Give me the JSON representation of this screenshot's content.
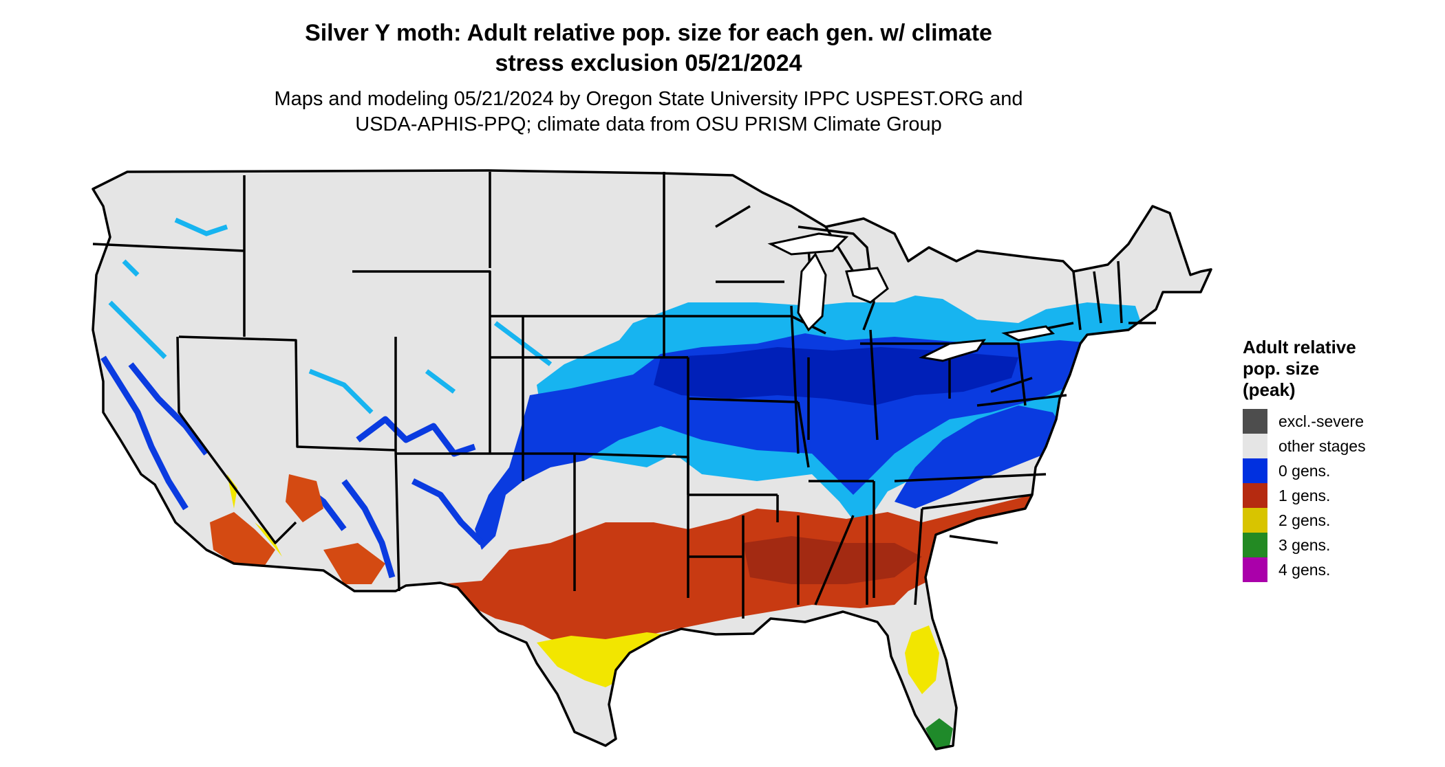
{
  "title_lines": [
    "Silver Y moth: Adult relative pop. size for each gen. w/ climate",
    "stress exclusion 05/21/2024"
  ],
  "subtitle_lines": [
    "Maps and modeling 05/21/2024 by Oregon State University IPPC USPEST.ORG and",
    "USDA-APHIS-PPQ; climate data from OSU PRISM Climate Group"
  ],
  "legend": {
    "title_lines": [
      "Adult relative",
      "pop. size",
      "(peak)"
    ],
    "items": [
      {
        "label": "excl.-severe",
        "color": "#4d4d4d"
      },
      {
        "label": "other stages",
        "color": "#e5e5e5"
      },
      {
        "label": "0 gens.",
        "color": "#0030e0"
      },
      {
        "label": "1 gens.",
        "color": "#b52a10"
      },
      {
        "label": "2 gens.",
        "color": "#d8c400"
      },
      {
        "label": "3 gens.",
        "color": "#238a23"
      },
      {
        "label": "4 gens.",
        "color": "#aa00aa"
      }
    ]
  },
  "map": {
    "region": "contiguous United States",
    "colors": {
      "land": "#e5e5e5",
      "light_blue": "#17b4f0",
      "blue": "#0a3be0",
      "dark_blue": "#0020b8",
      "red": "#c83a12",
      "dark_red": "#a32a12",
      "orange": "#ff5a1a",
      "yellow": "#f2e600",
      "green": "#1f8a2a",
      "border": "#000000"
    }
  }
}
